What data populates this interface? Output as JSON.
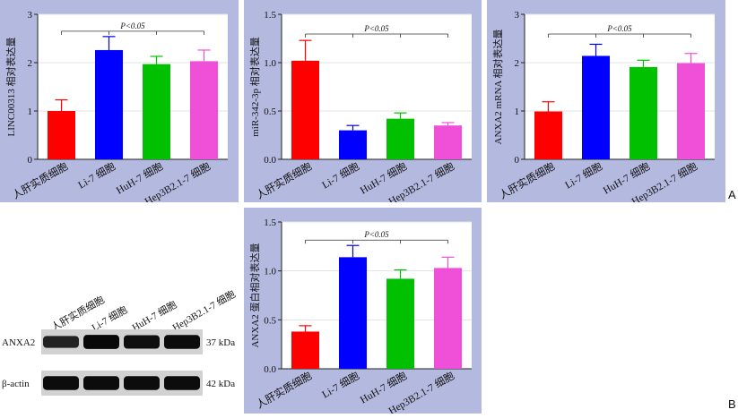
{
  "panel_letters": [
    "A",
    "B"
  ],
  "significance_label": "P<0.05",
  "chart_data": [
    {
      "type": "bar",
      "ylabel": "LINC00313 相对表达量",
      "categories": [
        "人肝实质细胞",
        "Li-7 细胞",
        "HuH-7 细胞",
        "Hep3B2.1-7 细胞"
      ],
      "values": [
        1.0,
        2.26,
        1.97,
        2.03
      ],
      "errors": [
        0.23,
        0.28,
        0.16,
        0.23
      ],
      "colors": [
        "#ff0000",
        "#0000ff",
        "#00c000",
        "#f050d8"
      ],
      "ylim": [
        0,
        3
      ],
      "yticks": [
        "0",
        "1",
        "2",
        "3"
      ],
      "annotation": "P<0.05"
    },
    {
      "type": "bar",
      "ylabel": "miR-342-3p 相对表达量",
      "categories": [
        "人肝实质细胞",
        "Li-7 细胞",
        "HuH-7 细胞",
        "Hep3B2.1-7 细胞"
      ],
      "values": [
        1.02,
        0.3,
        0.42,
        0.35
      ],
      "errors": [
        0.21,
        0.05,
        0.06,
        0.03
      ],
      "colors": [
        "#ff0000",
        "#0000ff",
        "#00c000",
        "#f050d8"
      ],
      "ylim": [
        0,
        1.5
      ],
      "yticks": [
        "0.0",
        "0.5",
        "1.0",
        "1.5"
      ],
      "annotation": "P<0.05"
    },
    {
      "type": "bar",
      "ylabel": "ANXA2 mRNA 相对表达量",
      "categories": [
        "人肝实质细胞",
        "Li-7 细胞",
        "HuH-7 细胞",
        "Hep3B2.1-7 细胞"
      ],
      "values": [
        0.99,
        2.14,
        1.91,
        1.99
      ],
      "errors": [
        0.2,
        0.24,
        0.14,
        0.2
      ],
      "colors": [
        "#ff0000",
        "#0000ff",
        "#00c000",
        "#f050d8"
      ],
      "ylim": [
        0,
        3
      ],
      "yticks": [
        "0",
        "1",
        "2",
        "3"
      ],
      "annotation": "P<0.05"
    },
    {
      "type": "bar",
      "ylabel": "ANXA2 蛋白相对表达量",
      "categories": [
        "人肝实质细胞",
        "Li-7 细胞",
        "HuH-7 细胞",
        "Hep3B2.1-7 细胞"
      ],
      "values": [
        0.38,
        1.14,
        0.92,
        1.03
      ],
      "errors": [
        0.06,
        0.12,
        0.09,
        0.11
      ],
      "colors": [
        "#ff0000",
        "#0000ff",
        "#00c000",
        "#f050d8"
      ],
      "ylim": [
        0,
        1.5
      ],
      "yticks": [
        "0.0",
        "0.5",
        "1.0",
        "1.5"
      ],
      "annotation": "P<0.05"
    }
  ],
  "western_blot": {
    "lanes": [
      "人肝实质细胞",
      "Li-7 细胞",
      "HuH-7 细胞",
      "Hep3B2.1-7 细胞"
    ],
    "rows": [
      {
        "protein": "ANXA2",
        "size": "37 kDa",
        "intensity": [
          0.55,
          0.95,
          0.85,
          0.9
        ]
      },
      {
        "protein": "β-actin",
        "size": "42 kDa",
        "intensity": [
          0.9,
          0.9,
          0.9,
          0.9
        ]
      }
    ]
  }
}
